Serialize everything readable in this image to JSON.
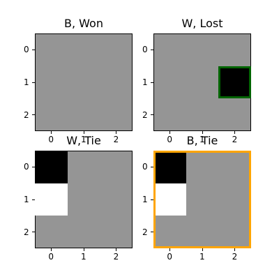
{
  "board_fill_color": "#959595",
  "stone_colors": {
    "black": "#000000",
    "white": "#ffffff"
  },
  "axis_ticks": [
    "0",
    "1",
    "2"
  ],
  "panels": [
    {
      "title": "B, Won",
      "cells": [],
      "highlight": null
    },
    {
      "title": "W, Lost",
      "cells": [
        {
          "row": 1,
          "col": 2,
          "color": "black"
        }
      ],
      "highlight": {
        "type": "cell",
        "row": 1,
        "col": 2,
        "color": "#006400"
      }
    },
    {
      "title": "W, Tie",
      "cells": [
        {
          "row": 0,
          "col": 0,
          "color": "black"
        },
        {
          "row": 1,
          "col": 0,
          "color": "white"
        }
      ],
      "highlight": null
    },
    {
      "title": "B, Tie",
      "cells": [
        {
          "row": 0,
          "col": 0,
          "color": "black"
        },
        {
          "row": 1,
          "col": 0,
          "color": "white"
        }
      ],
      "highlight": {
        "type": "board",
        "color": "#ffa500"
      }
    }
  ]
}
